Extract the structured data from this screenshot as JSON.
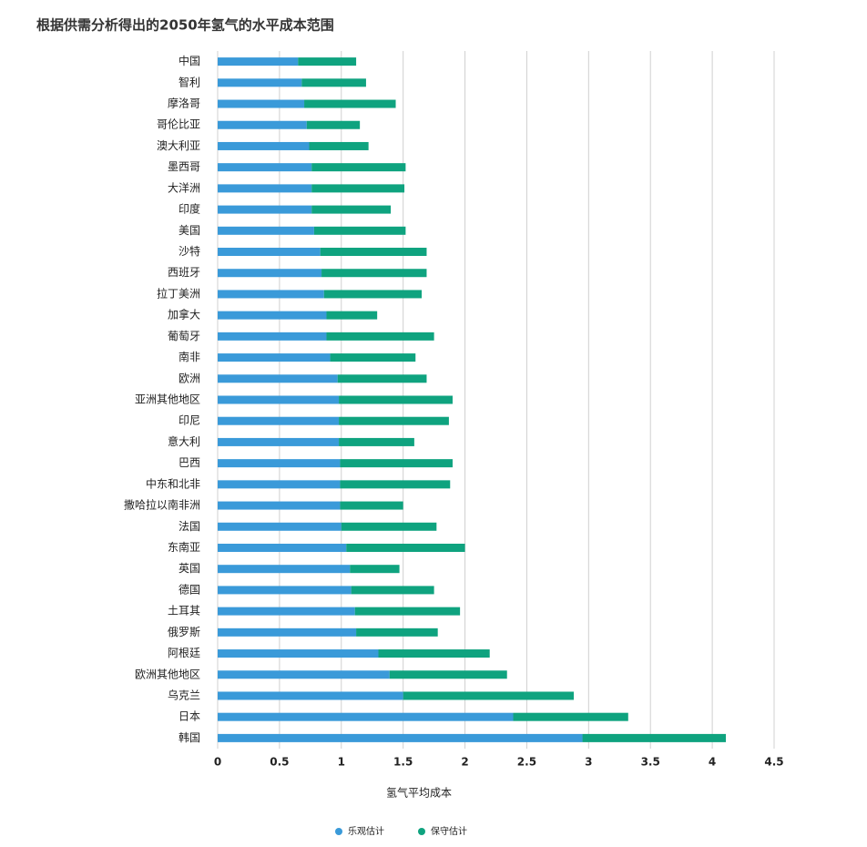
{
  "chart_data": {
    "type": "stacked_barh",
    "title": "根据供需分析得出的2050年氢气的水平成本范围",
    "xlabel": "氢气平均成本",
    "categories": [
      "中国",
      "智利",
      "摩洛哥",
      "哥伦比亚",
      "澳大利亚",
      "墨西哥",
      "大洋洲",
      "印度",
      "美国",
      "沙特",
      "西班牙",
      "拉丁美洲",
      "加拿大",
      "葡萄牙",
      "南非",
      "欧洲",
      "亚洲其他地区",
      "印尼",
      "意大利",
      "巴西",
      "中东和北非",
      "撒哈拉以南非洲",
      "法国",
      "东南亚",
      "英国",
      "德国",
      "土耳其",
      "俄罗斯",
      "阿根廷",
      "欧洲其他地区",
      "乌克兰",
      "日本",
      "韩国"
    ],
    "series": [
      {
        "name": "乐观估计",
        "color": "#3a9ad9",
        "values": [
          0.65,
          0.68,
          0.7,
          0.72,
          0.74,
          0.76,
          0.76,
          0.76,
          0.78,
          0.83,
          0.84,
          0.86,
          0.88,
          0.88,
          0.91,
          0.97,
          0.98,
          0.98,
          0.98,
          0.99,
          0.99,
          0.99,
          1.0,
          1.04,
          1.07,
          1.08,
          1.11,
          1.12,
          1.3,
          1.39,
          1.5,
          2.39,
          2.95
        ]
      },
      {
        "name": "保守估计",
        "color": "#0fa37f",
        "values": [
          0.47,
          0.52,
          0.74,
          0.43,
          0.48,
          0.76,
          0.75,
          0.64,
          0.74,
          0.86,
          0.85,
          0.79,
          0.41,
          0.87,
          0.69,
          0.72,
          0.92,
          0.89,
          0.61,
          0.91,
          0.89,
          0.51,
          0.77,
          0.96,
          0.4,
          0.67,
          0.85,
          0.66,
          0.9,
          0.95,
          1.38,
          0.93,
          1.16
        ]
      }
    ],
    "xlim": [
      0,
      4.5
    ],
    "xticks": [
      0,
      0.5,
      1,
      1.5,
      2,
      2.5,
      3,
      3.5,
      4,
      4.5
    ],
    "grid": true,
    "legend": "bottom"
  }
}
